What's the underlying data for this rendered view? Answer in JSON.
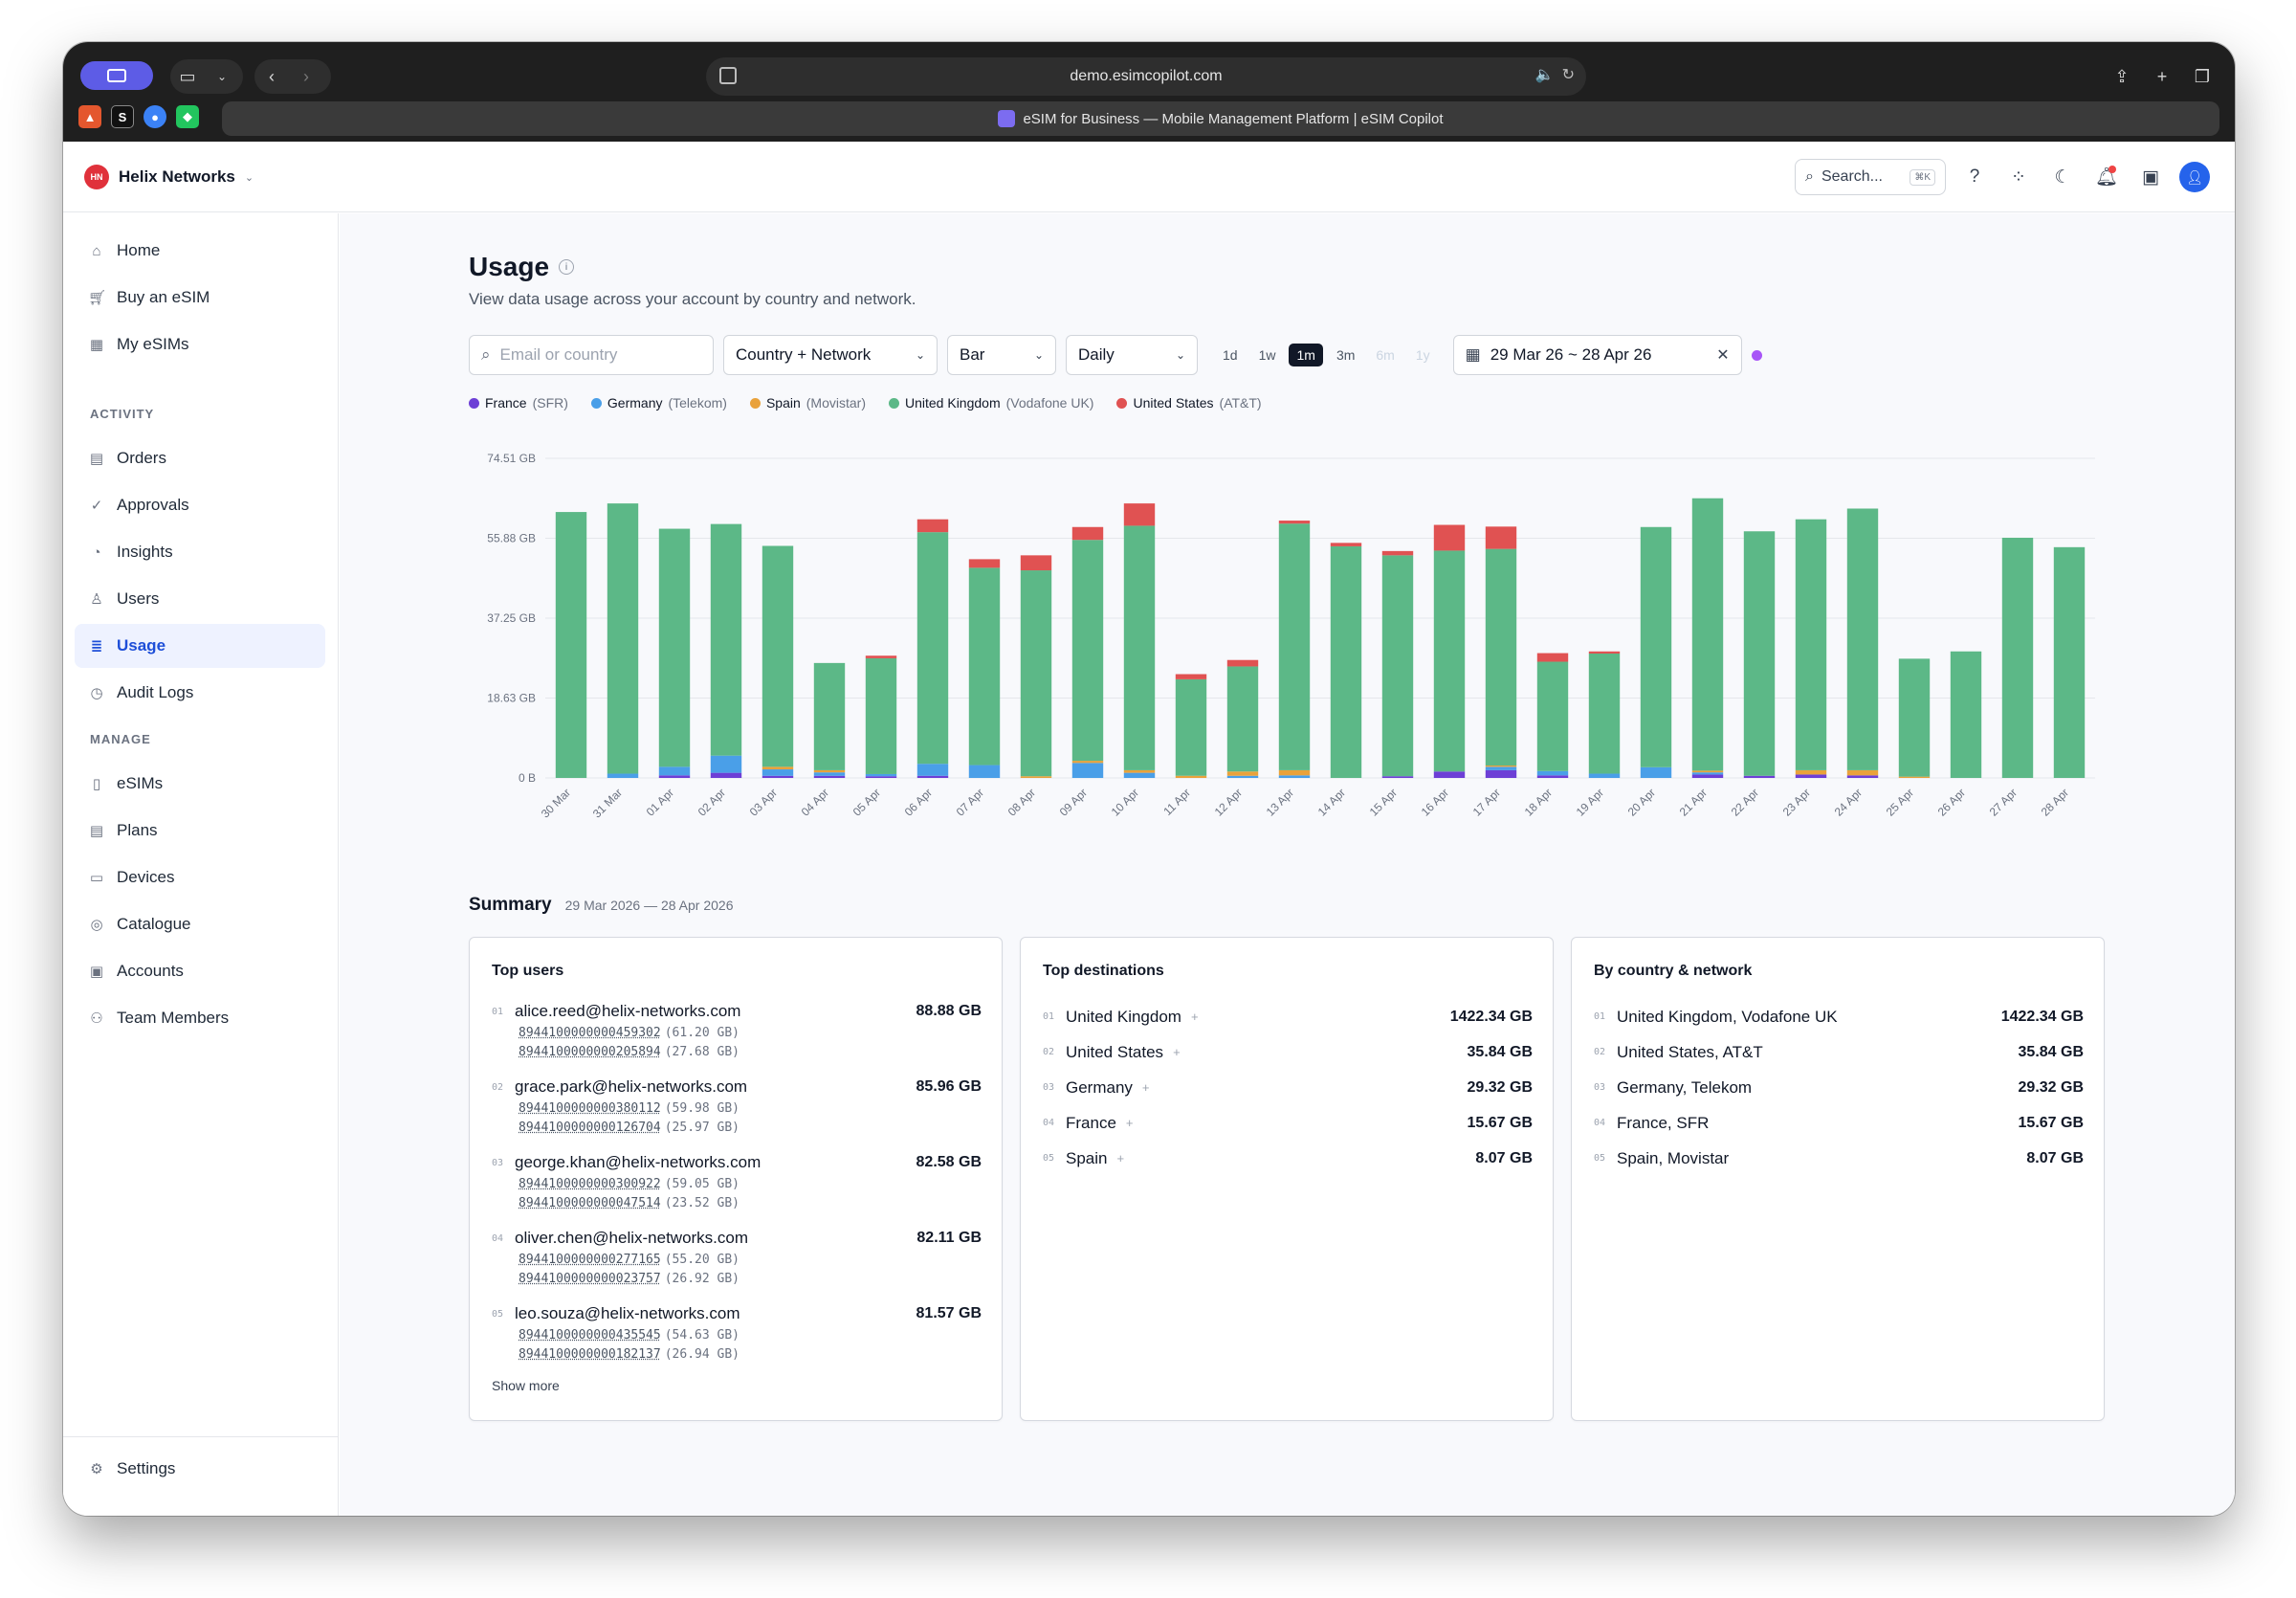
{
  "browser": {
    "url": "demo.esimcopilot.com",
    "tab_title": "eSIM for Business — Mobile Management Platform | eSIM Copilot"
  },
  "header": {
    "org_initials": "HN",
    "org_name": "Helix Networks",
    "search_label": "Search...",
    "search_shortcut": "⌘K"
  },
  "sidebar": {
    "top_items": [
      {
        "label": "Home",
        "icon": "home-icon"
      },
      {
        "label": "Buy an eSIM",
        "icon": "cart-icon"
      },
      {
        "label": "My eSIMs",
        "icon": "qr-icon"
      }
    ],
    "activity_heading": "ACTIVITY",
    "activity_items": [
      {
        "label": "Orders",
        "icon": "document-icon"
      },
      {
        "label": "Approvals",
        "icon": "check-circle-icon"
      },
      {
        "label": "Insights",
        "icon": "pie-icon"
      },
      {
        "label": "Users",
        "icon": "user-icon"
      },
      {
        "label": "Usage",
        "icon": "database-icon",
        "active": true
      },
      {
        "label": "Audit Logs",
        "icon": "clock-icon"
      }
    ],
    "manage_heading": "MANAGE",
    "manage_items": [
      {
        "label": "eSIMs",
        "icon": "sim-icon"
      },
      {
        "label": "Plans",
        "icon": "document-icon"
      },
      {
        "label": "Devices",
        "icon": "device-icon"
      },
      {
        "label": "Catalogue",
        "icon": "globe-icon"
      },
      {
        "label": "Accounts",
        "icon": "wallet-icon"
      },
      {
        "label": "Team Members",
        "icon": "team-icon"
      }
    ],
    "settings_label": "Settings"
  },
  "page": {
    "title": "Usage",
    "subtitle": "View data usage across your account by country and network."
  },
  "filters": {
    "search_placeholder": "Email or country",
    "group_by": "Country + Network",
    "chart_type": "Bar",
    "interval": "Daily",
    "ranges": [
      {
        "label": "1d",
        "state": "normal"
      },
      {
        "label": "1w",
        "state": "normal"
      },
      {
        "label": "1m",
        "state": "active"
      },
      {
        "label": "3m",
        "state": "normal"
      },
      {
        "label": "6m",
        "state": "disabled"
      },
      {
        "label": "1y",
        "state": "disabled"
      }
    ],
    "date_range": "29 Mar 26 ~ 28 Apr 26"
  },
  "legend": [
    {
      "country": "France",
      "network": "(SFR)",
      "color": "#6d3fd6"
    },
    {
      "country": "Germany",
      "network": "(Telekom)",
      "color": "#4a9fe8"
    },
    {
      "country": "Spain",
      "network": "(Movistar)",
      "color": "#e9a23b"
    },
    {
      "country": "United Kingdom",
      "network": "(Vodafone UK)",
      "color": "#5cb887"
    },
    {
      "country": "United States",
      "network": "(AT&T)",
      "color": "#e05252"
    }
  ],
  "chart_data": {
    "type": "bar",
    "stacked": true,
    "y_ticks": [
      "0 B",
      "18.63 GB",
      "37.25 GB",
      "55.88 GB",
      "74.51 GB"
    ],
    "ylim": [
      0,
      74.51
    ],
    "unit": "GB",
    "categories": [
      "30 Mar",
      "31 Mar",
      "01 Apr",
      "02 Apr",
      "03 Apr",
      "04 Apr",
      "05 Apr",
      "06 Apr",
      "07 Apr",
      "08 Apr",
      "09 Apr",
      "10 Apr",
      "11 Apr",
      "12 Apr",
      "13 Apr",
      "14 Apr",
      "15 Apr",
      "16 Apr",
      "17 Apr",
      "18 Apr",
      "19 Apr",
      "20 Apr",
      "21 Apr",
      "22 Apr",
      "23 Apr",
      "24 Apr",
      "25 Apr",
      "26 Apr",
      "27 Apr",
      "28 Apr"
    ],
    "series": [
      {
        "name": "France (SFR)",
        "color": "#6d3fd6",
        "values": [
          0,
          0,
          0.6,
          1.2,
          0.5,
          0.5,
          0.4,
          0.5,
          0,
          0,
          0,
          0,
          0,
          0,
          0,
          0,
          0.4,
          1.5,
          1.8,
          0.6,
          0,
          0,
          0.8,
          0.5,
          0.8,
          0.6,
          0,
          0,
          0,
          0
        ]
      },
      {
        "name": "Germany (Telekom)",
        "color": "#4a9fe8",
        "values": [
          0,
          1.0,
          2.0,
          4.0,
          1.5,
          0.8,
          0.5,
          2.8,
          3.0,
          0,
          3.5,
          1.2,
          0,
          0.5,
          0.6,
          0,
          0,
          0,
          0.8,
          1.0,
          1.0,
          2.5,
          0.5,
          0,
          0,
          0,
          0,
          0,
          0,
          0
        ]
      },
      {
        "name": "Spain (Movistar)",
        "color": "#e9a23b",
        "values": [
          0,
          0,
          0,
          0,
          0.6,
          0.5,
          0,
          0,
          0,
          0.4,
          0.5,
          0.6,
          0.5,
          1.0,
          1.2,
          0,
          0,
          0,
          0.3,
          0,
          0,
          0,
          0.4,
          0,
          1.0,
          1.2,
          0.3,
          0,
          0,
          0
        ]
      },
      {
        "name": "United Kingdom (Vodafone UK)",
        "color": "#5cb887",
        "values": [
          62.0,
          63.0,
          55.5,
          54.0,
          51.5,
          25.0,
          27.0,
          54.0,
          46.0,
          48.0,
          51.5,
          57.0,
          22.5,
          24.5,
          57.5,
          54.0,
          51.5,
          51.5,
          50.5,
          25.5,
          28.0,
          56.0,
          63.5,
          57.0,
          58.5,
          61.0,
          27.5,
          29.5,
          56.0,
          53.8
        ]
      },
      {
        "name": "United States (AT&T)",
        "color": "#e05252",
        "values": [
          0,
          0,
          0,
          0,
          0,
          0,
          0.6,
          3.0,
          2.0,
          3.5,
          3.0,
          5.2,
          1.2,
          1.5,
          0.7,
          0.8,
          1.0,
          6.0,
          5.2,
          2.0,
          0.5,
          0,
          0,
          0,
          0,
          0,
          0,
          0,
          0,
          0
        ]
      }
    ]
  },
  "summary": {
    "title": "Summary",
    "date_range": "29 Mar 2026 — 28 Apr 2026",
    "top_users_title": "Top users",
    "top_users": [
      {
        "idx": "01",
        "email": "alice.reed@helix-networks.com",
        "total": "88.88 GB",
        "iccids": [
          {
            "iccid": "8944100000000459302",
            "gb": "(61.20 GB)"
          },
          {
            "iccid": "8944100000000205894",
            "gb": "(27.68 GB)"
          }
        ]
      },
      {
        "idx": "02",
        "email": "grace.park@helix-networks.com",
        "total": "85.96 GB",
        "iccids": [
          {
            "iccid": "8944100000000380112",
            "gb": "(59.98 GB)"
          },
          {
            "iccid": "8944100000000126704",
            "gb": "(25.97 GB)"
          }
        ]
      },
      {
        "idx": "03",
        "email": "george.khan@helix-networks.com",
        "total": "82.58 GB",
        "iccids": [
          {
            "iccid": "8944100000000300922",
            "gb": "(59.05 GB)"
          },
          {
            "iccid": "8944100000000047514",
            "gb": "(23.52 GB)"
          }
        ]
      },
      {
        "idx": "04",
        "email": "oliver.chen@helix-networks.com",
        "total": "82.11 GB",
        "iccids": [
          {
            "iccid": "8944100000000277165",
            "gb": "(55.20 GB)"
          },
          {
            "iccid": "8944100000000023757",
            "gb": "(26.92 GB)"
          }
        ]
      },
      {
        "idx": "05",
        "email": "leo.souza@helix-networks.com",
        "total": "81.57 GB",
        "iccids": [
          {
            "iccid": "8944100000000435545",
            "gb": "(54.63 GB)"
          },
          {
            "iccid": "8944100000000182137",
            "gb": "(26.94 GB)"
          }
        ]
      }
    ],
    "show_more": "Show more",
    "top_destinations_title": "Top destinations",
    "top_destinations": [
      {
        "idx": "01",
        "name": "United Kingdom",
        "value": "1422.34 GB"
      },
      {
        "idx": "02",
        "name": "United States",
        "value": "35.84 GB"
      },
      {
        "idx": "03",
        "name": "Germany",
        "value": "29.32 GB"
      },
      {
        "idx": "04",
        "name": "France",
        "value": "15.67 GB"
      },
      {
        "idx": "05",
        "name": "Spain",
        "value": "8.07 GB"
      }
    ],
    "by_network_title": "By country & network",
    "by_network": [
      {
        "idx": "01",
        "name": "United Kingdom, Vodafone UK",
        "value": "1422.34 GB"
      },
      {
        "idx": "02",
        "name": "United States, AT&T",
        "value": "35.84 GB"
      },
      {
        "idx": "03",
        "name": "Germany, Telekom",
        "value": "29.32 GB"
      },
      {
        "idx": "04",
        "name": "France, SFR",
        "value": "15.67 GB"
      },
      {
        "idx": "05",
        "name": "Spain, Movistar",
        "value": "8.07 GB"
      }
    ]
  }
}
